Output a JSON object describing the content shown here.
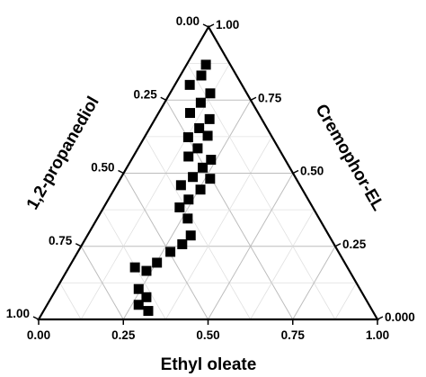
{
  "chart_data": {
    "type": "scatter",
    "subtype": "ternary",
    "axes": {
      "a": {
        "label": "1,2-propanediol",
        "ticks": [
          "0.00",
          "0.25",
          "0.50",
          "0.75",
          "1.00"
        ]
      },
      "b": {
        "label": "Ethyl oleate",
        "ticks": [
          "0.00",
          "0.25",
          "0.50",
          "0.75",
          "1.00"
        ]
      },
      "c": {
        "label": "Cremophor-EL",
        "ticks": [
          "0.000",
          "0.25",
          "0.50",
          "0.75",
          "1.00"
        ]
      }
    },
    "grid": true,
    "grid_step": 0.125,
    "marker": "square",
    "marker_color": "#000000",
    "points": [
      {
        "a": 0.072,
        "b": 0.057,
        "c": 0.871
      },
      {
        "a": 0.104,
        "b": 0.062,
        "c": 0.834
      },
      {
        "a": 0.154,
        "b": 0.044,
        "c": 0.802
      },
      {
        "a": 0.108,
        "b": 0.119,
        "c": 0.773
      },
      {
        "a": 0.152,
        "b": 0.107,
        "c": 0.741
      },
      {
        "a": 0.201,
        "b": 0.093,
        "c": 0.706
      },
      {
        "a": 0.154,
        "b": 0.161,
        "c": 0.685
      },
      {
        "a": 0.2,
        "b": 0.146,
        "c": 0.654
      },
      {
        "a": 0.248,
        "b": 0.129,
        "c": 0.623
      },
      {
        "a": 0.188,
        "b": 0.184,
        "c": 0.628
      },
      {
        "a": 0.239,
        "b": 0.176,
        "c": 0.585
      },
      {
        "a": 0.28,
        "b": 0.163,
        "c": 0.557
      },
      {
        "a": 0.219,
        "b": 0.235,
        "c": 0.546
      },
      {
        "a": 0.257,
        "b": 0.224,
        "c": 0.519
      },
      {
        "a": 0.302,
        "b": 0.211,
        "c": 0.487
      },
      {
        "a": 0.351,
        "b": 0.19,
        "c": 0.459
      },
      {
        "a": 0.254,
        "b": 0.265,
        "c": 0.481
      },
      {
        "a": 0.301,
        "b": 0.255,
        "c": 0.444
      },
      {
        "a": 0.353,
        "b": 0.237,
        "c": 0.41
      },
      {
        "a": 0.393,
        "b": 0.224,
        "c": 0.383
      },
      {
        "a": 0.388,
        "b": 0.267,
        "c": 0.345
      },
      {
        "a": 0.408,
        "b": 0.305,
        "c": 0.287
      },
      {
        "a": 0.448,
        "b": 0.295,
        "c": 0.257
      },
      {
        "a": 0.496,
        "b": 0.273,
        "c": 0.231
      },
      {
        "a": 0.554,
        "b": 0.252,
        "c": 0.194
      },
      {
        "a": 0.599,
        "b": 0.235,
        "c": 0.166
      },
      {
        "a": 0.627,
        "b": 0.195,
        "c": 0.178
      },
      {
        "a": 0.644,
        "b": 0.28,
        "c": 0.076
      },
      {
        "a": 0.653,
        "b": 0.243,
        "c": 0.104
      },
      {
        "a": 0.662,
        "b": 0.309,
        "c": 0.029
      },
      {
        "a": 0.68,
        "b": 0.27,
        "c": 0.05
      }
    ]
  }
}
